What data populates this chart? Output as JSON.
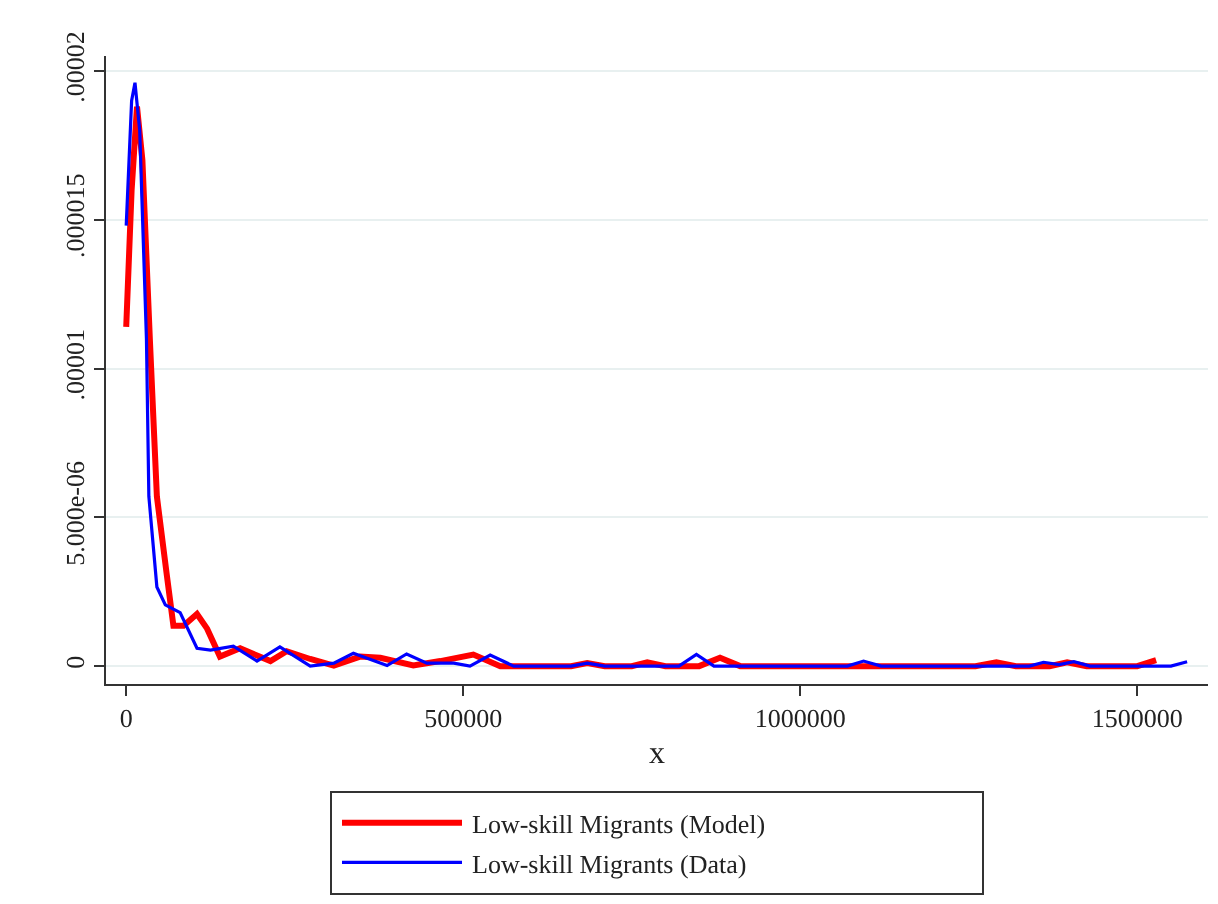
{
  "chart_data": {
    "type": "line",
    "xlabel": "x",
    "xlim": [
      -30000,
      1605000
    ],
    "ylim": [
      -6e-07,
      2.05e-05
    ],
    "xticks": [
      0,
      500000,
      1000000,
      1500000
    ],
    "yticks": [
      0,
      {
        "value": 5e-06,
        "label": "5.000e-06"
      },
      {
        "value": 1e-05,
        "label": ".00001"
      },
      {
        "value": 1.5e-05,
        "label": ".000015"
      },
      {
        "value": 2e-05,
        "label": ".00002"
      }
    ],
    "grid": "y",
    "legend": "bottom",
    "line_style": "solid",
    "marker": "none",
    "series": [
      {
        "name": "Low-skill Migrants (Model)",
        "color": "#ff0000",
        "x": [
          0,
          8000,
          16000,
          24000,
          35000,
          45500,
          60000,
          70000,
          85000,
          105000,
          120000,
          139000,
          169000,
          214000,
          238000,
          273000,
          308000,
          347000,
          377000,
          426000,
          466000,
          515000,
          555000,
          660000,
          684000,
          710000,
          750000,
          773000,
          800000,
          850000,
          881000,
          911000,
          1260000,
          1291000,
          1320000,
          1370000,
          1396000,
          1425000,
          1500000,
          1528000
        ],
        "values": [
          1.14e-05,
          1.6e-05,
          1.88e-05,
          1.7e-05,
          1.1e-05,
          5.7e-06,
          3.1e-06,
          1.36e-06,
          1.36e-06,
          1.75e-06,
          1.26e-06,
          3.2e-07,
          6e-07,
          1.7e-07,
          5e-07,
          2.4e-07,
          2e-08,
          3.2e-07,
          2.8e-07,
          2e-08,
          1.7e-07,
          3.9e-07,
          0,
          0,
          1e-07,
          0,
          0,
          1.3e-07,
          0,
          0,
          2.8e-07,
          0,
          0,
          1.3e-07,
          0,
          0,
          1.3e-07,
          0,
          0,
          2e-07
        ]
      },
      {
        "name": "Low-skill Migrants (Data)",
        "color": "#0000ff",
        "x": [
          0,
          8000,
          13000,
          20000,
          30000,
          33600,
          45500,
          58000,
          80000,
          105000,
          125000,
          159000,
          194000,
          228000,
          273000,
          308000,
          337000,
          387000,
          416000,
          446000,
          486000,
          510000,
          540000,
          575000,
          660000,
          684000,
          710000,
          820000,
          846000,
          872000,
          1070000,
          1094000,
          1120000,
          1340000,
          1361000,
          1384000,
          1406000,
          1430000,
          1475000,
          1550000,
          1574000
        ],
        "values": [
          1.48e-05,
          1.9e-05,
          1.96e-05,
          1.8e-05,
          1.1e-05,
          5.7e-06,
          2.66e-06,
          2.06e-06,
          1.8e-06,
          6e-07,
          5.4e-07,
          6.7e-07,
          1.7e-07,
          6.5e-07,
          0,
          1e-07,
          4.3e-07,
          2e-08,
          4.1e-07,
          1e-07,
          1e-07,
          0,
          3.7e-07,
          0,
          0,
          1e-07,
          0,
          0,
          3.9e-07,
          0,
          0,
          1.7e-07,
          0,
          0,
          1.3e-07,
          5e-08,
          1.5e-07,
          0,
          0,
          0,
          1.5e-07
        ]
      }
    ]
  }
}
